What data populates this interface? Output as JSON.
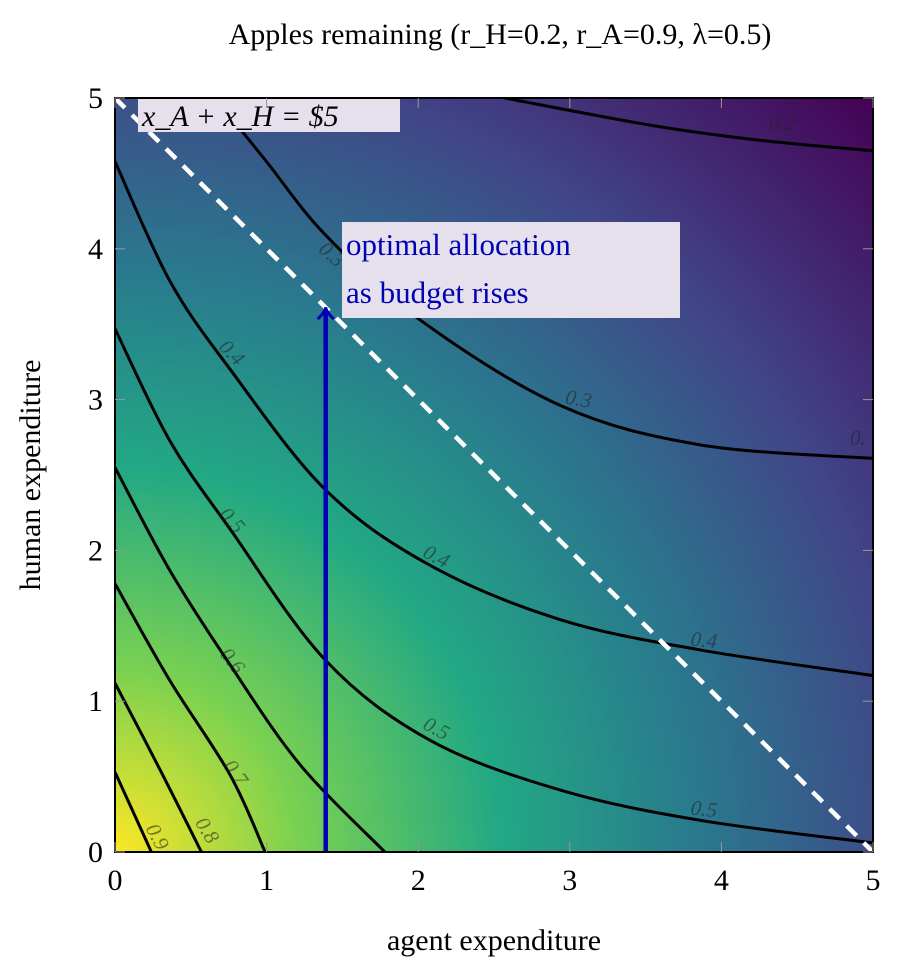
{
  "chart_data": {
    "type": "contour",
    "title": "Apples remaining  (r_H=0.2,  r_A=0.9,  λ=0.5)",
    "xlabel": "agent expenditure",
    "ylabel": "human expenditure",
    "xlim": [
      0,
      5
    ],
    "ylim": [
      0,
      5
    ],
    "xticks": [
      "0",
      "1",
      "2",
      "3",
      "4",
      "5"
    ],
    "yticks": [
      "0",
      "1",
      "2",
      "3",
      "4",
      "5"
    ],
    "colormap": [
      "#fde725",
      "#7ad151",
      "#22a884",
      "#2a788e",
      "#414487",
      "#440154"
    ],
    "contours": [
      {
        "level": "0.2",
        "points": [
          [
            2.57,
            5.0
          ],
          [
            3.53,
            4.82
          ],
          [
            4.25,
            4.72
          ],
          [
            5.0,
            4.65
          ]
        ]
      },
      {
        "level": "0.3",
        "points": [
          [
            0.66,
            5.0
          ],
          [
            0.99,
            4.59
          ],
          [
            1.39,
            4.09
          ],
          [
            2.01,
            3.53
          ],
          [
            2.94,
            2.96
          ],
          [
            3.86,
            2.7
          ],
          [
            5.0,
            2.61
          ]
        ]
      },
      {
        "level": "0.4",
        "points": [
          [
            0,
            4.58
          ],
          [
            0.36,
            3.79
          ],
          [
            0.76,
            3.2
          ],
          [
            1.39,
            2.4
          ],
          [
            2.08,
            1.9
          ],
          [
            2.94,
            1.54
          ],
          [
            3.86,
            1.34
          ],
          [
            5.0,
            1.17
          ]
        ]
      },
      {
        "level": "0.5",
        "points": [
          [
            0,
            3.47
          ],
          [
            0.36,
            2.73
          ],
          [
            0.76,
            2.14
          ],
          [
            1.39,
            1.27
          ],
          [
            2.08,
            0.74
          ],
          [
            2.94,
            0.41
          ],
          [
            3.86,
            0.21
          ],
          [
            5.0,
            0.06
          ]
        ]
      },
      {
        "level": "0.6",
        "points": [
          [
            0,
            2.55
          ],
          [
            0.36,
            1.87
          ],
          [
            0.76,
            1.24
          ],
          [
            1.22,
            0.58
          ],
          [
            1.78,
            0
          ]
        ]
      },
      {
        "level": "0.7",
        "points": [
          [
            0,
            1.78
          ],
          [
            0.36,
            1.14
          ],
          [
            0.76,
            0.51
          ],
          [
            0.99,
            0
          ]
        ]
      },
      {
        "level": "0.8",
        "points": [
          [
            0,
            1.12
          ],
          [
            0.3,
            0.54
          ],
          [
            0.57,
            0
          ]
        ]
      },
      {
        "level": "0.9",
        "points": [
          [
            0,
            0.53
          ],
          [
            0.24,
            0
          ]
        ]
      }
    ],
    "contour_labels": [
      {
        "text": "0.9",
        "x": 0.24,
        "y": 0.08,
        "angle": 62
      },
      {
        "text": "0.8",
        "x": 0.57,
        "y": 0.12,
        "angle": 58
      },
      {
        "text": "0.7",
        "x": 0.76,
        "y": 0.5,
        "angle": 55
      },
      {
        "text": "0.6",
        "x": 0.74,
        "y": 1.24,
        "angle": 52
      },
      {
        "text": "0.5",
        "x": 0.74,
        "y": 2.17,
        "angle": 48
      },
      {
        "text": "0.4",
        "x": 0.74,
        "y": 3.28,
        "angle": 45
      },
      {
        "text": "0.3",
        "x": 1.4,
        "y": 3.93,
        "angle": 42
      },
      {
        "text": "0.5",
        "x": 2.1,
        "y": 0.78,
        "angle": 28
      },
      {
        "text": "0.4",
        "x": 2.1,
        "y": 1.92,
        "angle": 28
      },
      {
        "text": "0.3",
        "x": 3.05,
        "y": 2.96,
        "angle": 10
      },
      {
        "text": "0.5",
        "x": 3.88,
        "y": 0.24,
        "angle": 6
      },
      {
        "text": "0.4",
        "x": 3.88,
        "y": 1.36,
        "angle": 6
      },
      {
        "text": "0.2",
        "x": 4.4,
        "y": 4.79,
        "angle": 3
      },
      {
        "text": "0.",
        "x": 4.9,
        "y": 2.7,
        "angle": 0
      }
    ],
    "budget_line": {
      "label": "x_A + x_H = $5",
      "budget": 5
    },
    "optimal_arrow": {
      "x": 1.39,
      "y_start": 0,
      "y_end": 3.6,
      "label_line1": "optimal allocation",
      "label_line2": "as budget rises",
      "color": "#0000b4"
    }
  }
}
